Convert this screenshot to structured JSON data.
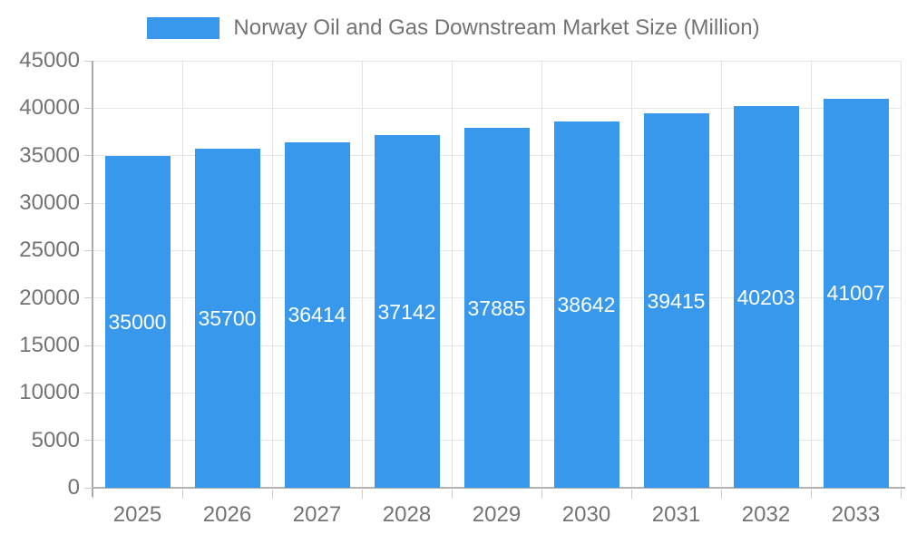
{
  "legend": {
    "label": "Norway Oil and Gas Downstream Market Size (Million)"
  },
  "chart_data": {
    "type": "bar",
    "title": "Norway Oil and Gas Downstream Market Size (Million)",
    "categories": [
      "2025",
      "2026",
      "2027",
      "2028",
      "2029",
      "2030",
      "2031",
      "2032",
      "2033"
    ],
    "values": [
      35000,
      35700,
      36414,
      37142,
      37885,
      38642,
      39415,
      40203,
      41007
    ],
    "xlabel": "",
    "ylabel": "",
    "ylim": [
      0,
      45000
    ],
    "ytick_step": 5000,
    "grid": true,
    "legend_position": "top-center",
    "bar_color": "#3899ec",
    "value_label_color": "#ffffff",
    "axis_label_color": "#737373",
    "gridline_color": "#e7e7e7",
    "axis_line_color": "#b3b3b3"
  }
}
